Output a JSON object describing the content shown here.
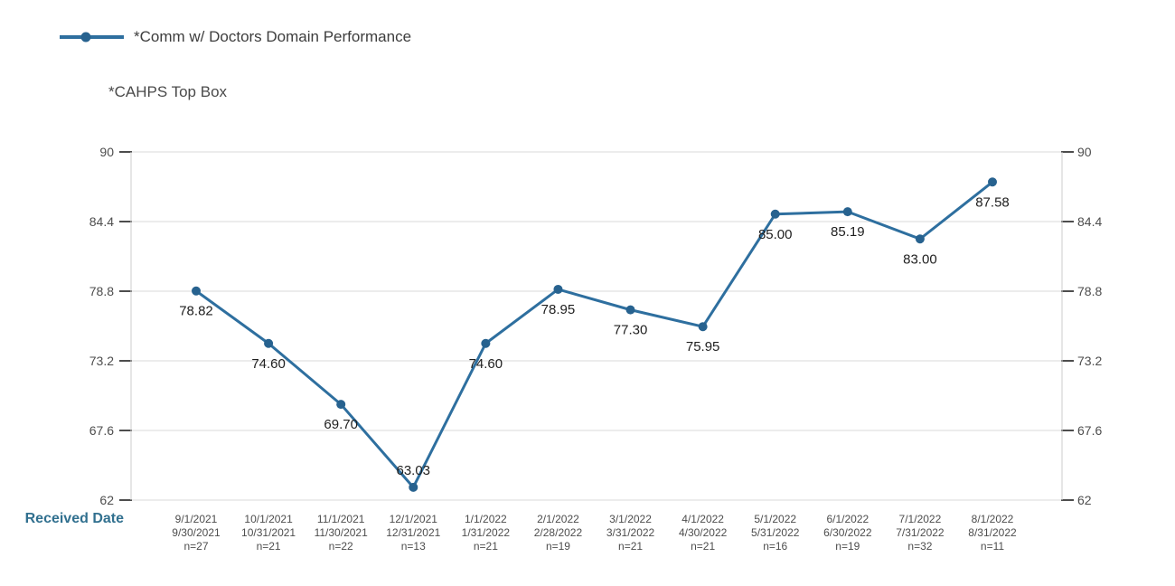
{
  "legend": {
    "label": "*Comm w/ Doctors Domain Performance"
  },
  "subtitle": "*CAHPS Top Box",
  "x_axis_title": "Received Date",
  "colors": {
    "line": "#2e6f9f",
    "marker": "#27628f",
    "grid": "#d9d9d9",
    "axis_line": "#cccccc",
    "tick": "#4d4d4d",
    "y_tick_label": "#4d4d4d",
    "x_tick_label": "#4d4d4d",
    "data_label": "#1f1f1f",
    "axis_title": "#31708f",
    "subtitle_color": "#4a4a4a",
    "legend_text": "#3d3d3d"
  },
  "chart_data": {
    "type": "line",
    "title": "*CAHPS Top Box",
    "xlabel": "Received Date",
    "ylabel": "",
    "ylim": [
      62,
      90
    ],
    "yticks": [
      90,
      84.4,
      78.8,
      73.2,
      67.6,
      62
    ],
    "grid": true,
    "legend_position": "top-left",
    "series": [
      {
        "name": "*Comm w/ Doctors Domain Performance",
        "values": [
          78.82,
          74.6,
          69.7,
          63.03,
          74.6,
          78.95,
          77.3,
          75.95,
          85.0,
          85.19,
          83.0,
          87.58
        ],
        "point_labels": [
          "78.82",
          "74.60",
          "69.70",
          "63.03",
          "74.60",
          "78.95",
          "77.30",
          "75.95",
          "85.00",
          "85.19",
          "83.00",
          "87.58"
        ],
        "label_placement": [
          "below",
          "below",
          "below",
          "above",
          "below",
          "below",
          "below",
          "below",
          "below",
          "below",
          "below",
          "below"
        ]
      }
    ],
    "categories": [
      {
        "period_start": "9/1/2021",
        "period_end": "9/30/2021",
        "n": "n=27"
      },
      {
        "period_start": "10/1/2021",
        "period_end": "10/31/2021",
        "n": "n=21"
      },
      {
        "period_start": "11/1/2021",
        "period_end": "11/30/2021",
        "n": "n=22"
      },
      {
        "period_start": "12/1/2021",
        "period_end": "12/31/2021",
        "n": "n=13"
      },
      {
        "period_start": "1/1/2022",
        "period_end": "1/31/2022",
        "n": "n=21"
      },
      {
        "period_start": "2/1/2022",
        "period_end": "2/28/2022",
        "n": "n=19"
      },
      {
        "period_start": "3/1/2022",
        "period_end": "3/31/2022",
        "n": "n=21"
      },
      {
        "period_start": "4/1/2022",
        "period_end": "4/30/2022",
        "n": "n=21"
      },
      {
        "period_start": "5/1/2022",
        "period_end": "5/31/2022",
        "n": "n=16"
      },
      {
        "period_start": "6/1/2022",
        "period_end": "6/30/2022",
        "n": "n=19"
      },
      {
        "period_start": "7/1/2022",
        "period_end": "7/31/2022",
        "n": "n=32"
      },
      {
        "period_start": "8/1/2022",
        "period_end": "8/31/2022",
        "n": "n=11"
      }
    ]
  }
}
